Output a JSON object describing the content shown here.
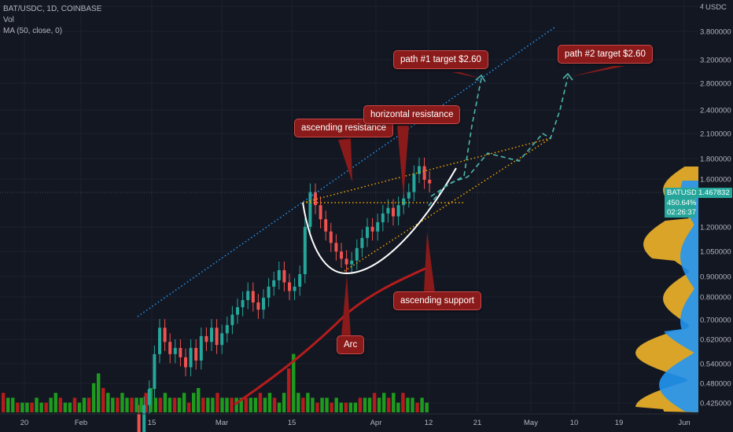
{
  "legend": {
    "symbol_line": "BAT/USDC, 1D, COINBASE",
    "vol_label": "Vol",
    "ma_label": "MA (50, close, 0)"
  },
  "price_axis": {
    "ticks": [
      "4",
      "3.800000",
      "3.200000",
      "2.800000",
      "2.400000",
      "2.100000",
      "1.800000",
      "1.600000",
      "1.200000",
      "1.050000",
      "0.900000",
      "0.800000",
      "0.700000",
      "0.620000",
      "0.540000",
      "0.480000",
      "0.425000"
    ],
    "currency": "USDC"
  },
  "time_axis": {
    "ticks": [
      "20",
      "Feb",
      "15",
      "Mar",
      "15",
      "Apr",
      "12",
      "21",
      "May",
      "10",
      "19",
      "Jun"
    ]
  },
  "price_tag": {
    "symbol": "BATUSDC",
    "price": "1.467832",
    "change_pct": "450.64%",
    "countdown": "02:26:37"
  },
  "annotations": {
    "path1": "path #1 target $2.60",
    "path2": "path #2 target $2.60",
    "ascending_resistance": "ascending resistance",
    "horizontal_resistance": "horizontal resistance",
    "ascending_support": "ascending support",
    "arc": "Arc"
  },
  "colors": {
    "background": "#131722",
    "up": "#26a69a",
    "down": "#ef5350",
    "vol_up": "#1e9b1e",
    "vol_down": "#b71c1c",
    "ma": "#b71c1c",
    "callout": "#8b1a1a",
    "trend_blue": "#2196f3",
    "trend_orange": "#f0a500",
    "path_teal": "#4db6ac",
    "profile_orange": "#f0b429",
    "profile_blue": "#2196f3"
  },
  "chart_data": {
    "type": "candlestick",
    "symbol": "BAT/USDC",
    "interval": "1D",
    "exchange": "COINBASE",
    "scale": "log",
    "x_ticks": [
      "20",
      "Feb",
      "15",
      "Mar",
      "15",
      "Apr",
      "12",
      "21",
      "May",
      "10",
      "19",
      "Jun"
    ],
    "y_ticks": [
      4,
      3.8,
      3.2,
      2.8,
      2.4,
      2.1,
      1.8,
      1.6,
      1.2,
      1.05,
      0.9,
      0.8,
      0.7,
      0.62,
      0.54,
      0.48,
      0.425
    ],
    "last_price": 1.467832,
    "change_pct": 450.64,
    "price_path": [
      0.4,
      0.36,
      0.42,
      0.46,
      0.56,
      0.65,
      0.6,
      0.56,
      0.58,
      0.55,
      0.52,
      0.58,
      0.54,
      0.62,
      0.6,
      0.65,
      0.59,
      0.63,
      0.66,
      0.7,
      0.73,
      0.76,
      0.8,
      0.75,
      0.72,
      0.77,
      0.82,
      0.85,
      0.9,
      0.84,
      0.8,
      0.82,
      0.88,
      1.15,
      1.4,
      1.3,
      1.2,
      1.12,
      1.05,
      1.0,
      0.96,
      0.93,
      0.95,
      1.02,
      1.08,
      1.15,
      1.12,
      1.18,
      1.24,
      1.28,
      1.22,
      1.3,
      1.35,
      1.4,
      1.55,
      1.62,
      1.5,
      1.47
    ],
    "volume": [
      4,
      3,
      3,
      2,
      2,
      2,
      2,
      3,
      2,
      2,
      3,
      4,
      3,
      2,
      2,
      3,
      2,
      3,
      3,
      6,
      8,
      5,
      4,
      3,
      3,
      4,
      3,
      3,
      3,
      3,
      4,
      5,
      3,
      3,
      4,
      3,
      3,
      3,
      4,
      2,
      4,
      5,
      3,
      3,
      3,
      4,
      3,
      3,
      3,
      3,
      3,
      3,
      3,
      3,
      4,
      3,
      4,
      3,
      2,
      4,
      9,
      12,
      4,
      3,
      4,
      3,
      2,
      3,
      3,
      2,
      3,
      2,
      2,
      2,
      2,
      3,
      3,
      3,
      4,
      3,
      4,
      3,
      4,
      2,
      4,
      3,
      3,
      2,
      3,
      2
    ],
    "ma50": [
      0.45,
      0.5,
      0.56,
      0.63,
      0.7,
      0.78,
      0.86,
      0.92
    ],
    "targets": [
      2.6,
      2.6
    ]
  }
}
